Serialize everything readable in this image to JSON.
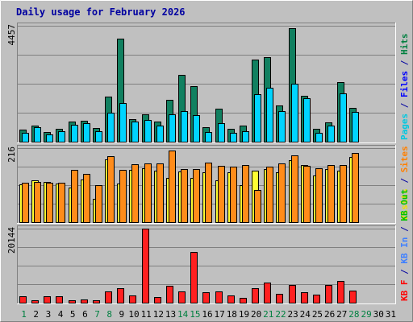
{
  "chart_data": {
    "type": "bar",
    "title": "Daily usage for February 2026",
    "days": [
      "1",
      "2",
      "3",
      "4",
      "5",
      "6",
      "7",
      "8",
      "9",
      "10",
      "11",
      "12",
      "13",
      "14",
      "15",
      "16",
      "17",
      "18",
      "19",
      "20",
      "21",
      "22",
      "23",
      "24",
      "25",
      "26",
      "27",
      "28",
      "29",
      "30",
      "31"
    ],
    "weekend_days": [
      "1",
      "7",
      "8",
      "14",
      "15",
      "21",
      "22",
      "28",
      "29"
    ],
    "panels": [
      {
        "id": "hits-files-pages",
        "ymax_label": "4457",
        "ymax": 4457,
        "side_label": [
          {
            "text": "Pages",
            "color": "#00c8e0"
          },
          {
            "text": " / ",
            "color": "#0000a0"
          },
          {
            "text": "Files",
            "color": "#0000ff"
          },
          {
            "text": " / ",
            "color": "#0000a0"
          },
          {
            "text": "Hits",
            "color": "#008040"
          }
        ],
        "series": [
          {
            "name": "Hits",
            "color": "#118060",
            "values": [
              460,
              620,
              380,
              480,
              760,
              820,
              520,
              1720,
              3960,
              860,
              1040,
              780,
              1600,
              2560,
              2130,
              570,
              1260,
              480,
              620,
              3170,
              3250,
              1400,
              4370,
              1750,
              500,
              750,
              2290,
              1290,
              0,
              0,
              0
            ]
          },
          {
            "name": "Pages",
            "color": "#00d4ff",
            "values": [
              340,
              560,
              290,
              390,
              640,
              720,
              400,
              1120,
              1490,
              760,
              840,
              630,
              1050,
              1180,
              1030,
              360,
              710,
              340,
              400,
              1840,
              2080,
              1180,
              2230,
              1670,
              340,
              610,
              1860,
              1160,
              0,
              0,
              0
            ]
          }
        ]
      },
      {
        "id": "visits-sites",
        "ymax_label": "216",
        "ymax": 216,
        "side_label": [
          {
            "text": "Visits",
            "color": "#f0e000"
          },
          {
            "text": " / ",
            "color": "#0000a0"
          },
          {
            "text": "Sites",
            "color": "#ff8000"
          }
        ],
        "series": [
          {
            "name": "Visits",
            "color": "#ffff33",
            "values": [
              110,
              121,
              118,
              112,
              100,
              125,
              67,
              182,
              113,
              152,
              157,
              150,
              128,
              147,
              129,
              146,
              123,
              146,
              107,
              150,
              155,
              145,
              180,
              167,
              135,
              155,
              150,
              189,
              0,
              0,
              0
            ]
          },
          {
            "name": "Sites",
            "color": "#ff8c1a",
            "values": [
              114,
              118,
              116,
              115,
              153,
              142,
              109,
              192,
              153,
              168,
              171,
              172,
              209,
              155,
              156,
              174,
              164,
              161,
              166,
              95,
              163,
              172,
              195,
              164,
              158,
              167,
              167,
              203,
              0,
              0,
              0
            ]
          }
        ]
      },
      {
        "id": "kbytes",
        "ymax_label": "20144",
        "ymax": 20144,
        "side_label": [
          {
            "text": "KB F",
            "color": "#ff0000"
          },
          {
            "text": " / ",
            "color": "#0000a0"
          },
          {
            "text": "KB In",
            "color": "#4080ff"
          },
          {
            "text": " / ",
            "color": "#0000a0"
          },
          {
            "text": "KB Out",
            "color": "#00c000"
          }
        ],
        "series": [
          {
            "name": "KB F",
            "color": "#ff2020",
            "values": [
              1700,
              600,
              1700,
              1700,
              700,
              900,
              700,
              3100,
              3900,
              2000,
              20144,
              1500,
              4700,
              3100,
              13800,
              2900,
              3000,
              1900,
              1400,
              3900,
              5400,
              2500,
              4800,
              2900,
              2200,
              4900,
              5900,
              3200,
              0,
              0,
              0
            ]
          }
        ]
      }
    ]
  }
}
